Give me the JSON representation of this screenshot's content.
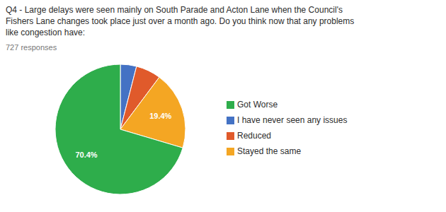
{
  "chart_data": {
    "type": "pie",
    "title": "Q4 - Large delays were seen mainly on South Parade and Acton Lane when the Council's\nFishers Lane changes took place just over a month ago. Do you think now that any problems\nlike congestion have:",
    "subtitle": "727 responses",
    "categories": [
      "I have never seen any issues",
      "Reduced",
      "Stayed the same",
      "Got Worse"
    ],
    "values": [
      4.0,
      6.2,
      19.4,
      70.4
    ],
    "colors": [
      "#4472C4",
      "#E05A2B",
      "#F4A623",
      "#2EAD4B"
    ],
    "data_labels": true,
    "value_labels": [
      null,
      null,
      "19.4%",
      "70.4%"
    ],
    "legend": "right"
  }
}
